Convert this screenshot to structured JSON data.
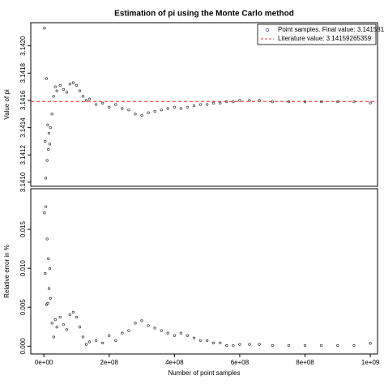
{
  "chart_data": [
    {
      "type": "scatter",
      "title": "Estimation of pi using the Monte Carlo method",
      "ylabel": "Value of pi",
      "x": [
        2000000,
        4000000,
        6000000,
        8000000,
        10000000,
        12000000,
        14000000,
        16000000,
        18000000,
        20000000,
        25000000,
        30000000,
        35000000,
        40000000,
        50000000,
        60000000,
        70000000,
        80000000,
        90000000,
        100000000,
        110000000,
        120000000,
        130000000,
        140000000,
        160000000,
        180000000,
        200000000,
        220000000,
        240000000,
        260000000,
        280000000,
        300000000,
        320000000,
        340000000,
        360000000,
        380000000,
        400000000,
        420000000,
        440000000,
        460000000,
        480000000,
        500000000,
        520000000,
        540000000,
        560000000,
        580000000,
        600000000,
        630000000,
        660000000,
        700000000,
        750000000,
        800000000,
        850000000,
        900000000,
        950000000,
        1000000000
      ],
      "series": [
        {
          "name": "Point samples. Final value:  3.141581",
          "color": "#333333",
          "values": [
            3.14213,
            3.1413,
            3.14103,
            3.14176,
            3.14116,
            3.14142,
            3.14124,
            3.14136,
            3.14128,
            3.1414,
            3.1415,
            3.14163,
            3.1417,
            3.14167,
            3.14171,
            3.14168,
            3.14166,
            3.14172,
            3.14173,
            3.14171,
            3.14167,
            3.14163,
            3.1416,
            3.14161,
            3.14157,
            3.14158,
            3.14155,
            3.14157,
            3.14154,
            3.14153,
            3.1415,
            3.14149,
            3.14151,
            3.14152,
            3.14153,
            3.14154,
            3.14155,
            3.14154,
            3.14155,
            3.14156,
            3.14157,
            3.14157,
            3.14158,
            3.14158,
            3.14159,
            3.14159,
            3.1416,
            3.1416,
            3.1416,
            3.14159,
            3.14159,
            3.14159,
            3.14159,
            3.14159,
            3.14159,
            3.141581
          ]
        }
      ],
      "reference_line": {
        "name": "Literature value:  3.14159265359",
        "value": 3.14159265359,
        "color": "#ff0000"
      },
      "ylim": [
        3.14097,
        3.14217
      ],
      "yticks": [
        {
          "value": 3.141,
          "label": "3.1410"
        },
        3.1412,
        3.1414,
        3.1416,
        3.1418,
        {
          "value": 3.142,
          "label": "3.1420"
        }
      ],
      "xlim": [
        -40000000,
        1022000000
      ]
    },
    {
      "type": "scatter",
      "ylabel": "Relative error in %",
      "xlabel": "Number of point samples",
      "x": [
        2000000,
        4000000,
        6000000,
        8000000,
        10000000,
        12000000,
        14000000,
        16000000,
        18000000,
        20000000,
        25000000,
        30000000,
        35000000,
        40000000,
        50000000,
        60000000,
        70000000,
        80000000,
        90000000,
        100000000,
        110000000,
        120000000,
        130000000,
        140000000,
        160000000,
        180000000,
        200000000,
        220000000,
        240000000,
        260000000,
        280000000,
        300000000,
        320000000,
        340000000,
        360000000,
        380000000,
        400000000,
        420000000,
        440000000,
        460000000,
        480000000,
        500000000,
        520000000,
        540000000,
        560000000,
        580000000,
        600000000,
        630000000,
        660000000,
        700000000,
        750000000,
        800000000,
        850000000,
        900000000,
        950000000,
        1000000000
      ],
      "series": [
        {
          "name": "Relative error",
          "color": "#333333",
          "values": [
            0.0171,
            0.00932,
            0.0179,
            0.00532,
            0.01376,
            0.0055,
            0.01122,
            0.00741,
            0.00996,
            0.00614,
            0.00296,
            0.00118,
            0.00341,
            0.00245,
            0.00373,
            0.00277,
            0.00213,
            0.00404,
            0.00436,
            0.00373,
            0.00245,
            0.00118,
            0.00023,
            0.00055,
            0.00073,
            0.00041,
            0.00136,
            0.00073,
            0.00168,
            0.002,
            0.00296,
            0.00327,
            0.00264,
            0.00232,
            0.002,
            0.00168,
            0.00136,
            0.00168,
            0.00136,
            0.00105,
            0.00073,
            0.00073,
            0.00041,
            0.00041,
            9e-05,
            9e-05,
            0.00023,
            0.00023,
            0.00023,
            9e-05,
            9e-05,
            9e-05,
            9e-05,
            9e-05,
            9e-05,
            0.00037
          ]
        }
      ],
      "ylim": [
        -0.001,
        0.0202
      ],
      "yticks": [
        {
          "value": 0,
          "label": "0.000"
        },
        0.005,
        {
          "value": 0.01,
          "label": "0.010"
        },
        0.015
      ],
      "xlim": [
        -40000000,
        1022000000
      ],
      "xticks": [
        {
          "value": 0,
          "label": "0e+00"
        },
        {
          "value": 200000000,
          "label": "2e+08"
        },
        {
          "value": 400000000,
          "label": "4e+08"
        },
        {
          "value": 600000000,
          "label": "6e+08"
        },
        {
          "value": 800000000,
          "label": "8e+08"
        },
        {
          "value": 1000000000,
          "label": "1e+09"
        }
      ]
    }
  ]
}
